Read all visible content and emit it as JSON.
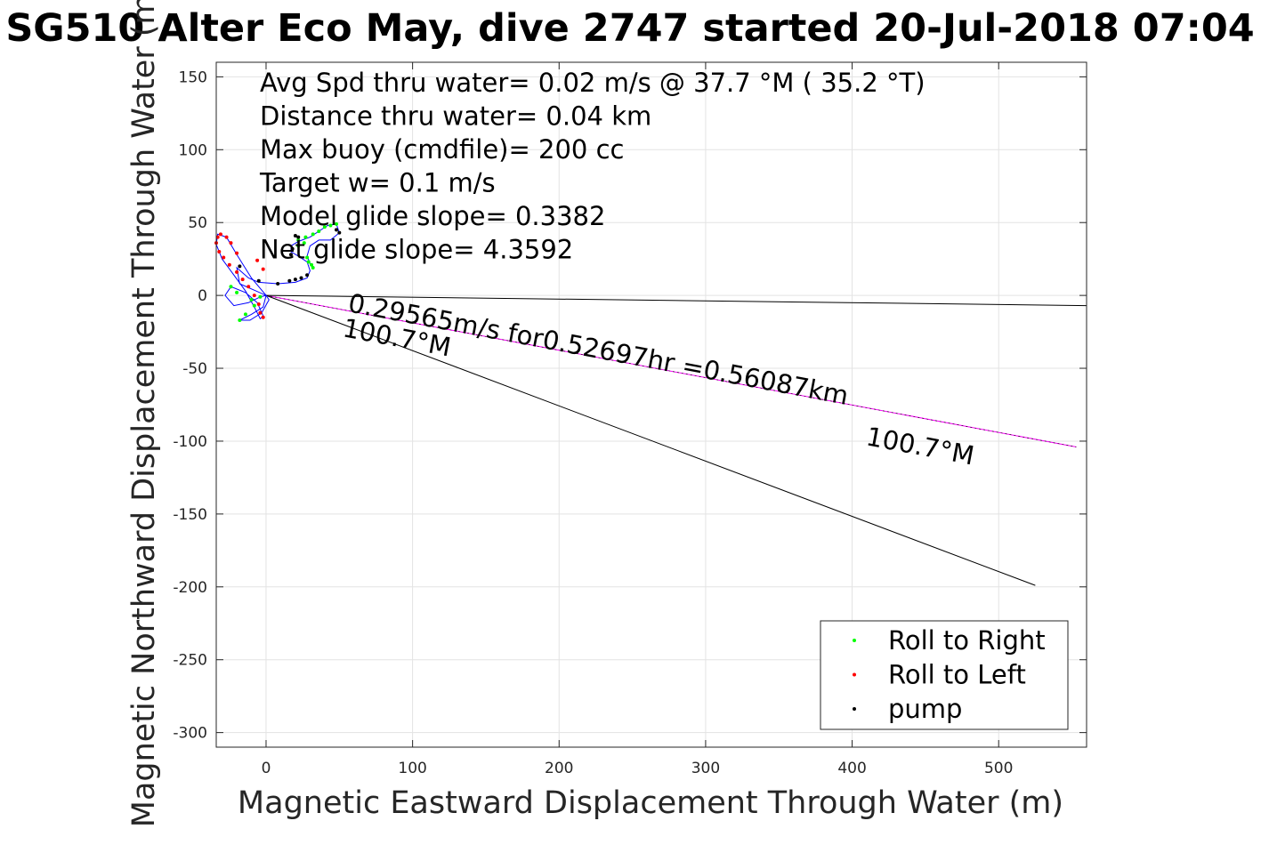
{
  "chart_data": {
    "type": "line",
    "title": "SG510 Alter Eco May, dive 2747 started 20-Jul-2018 07:04",
    "xlabel": "Magnetic Eastward Displacement Through Water (m)",
    "ylabel": "Magnetic Northward Displacement Through Water (m)",
    "xlim": [
      -34,
      560
    ],
    "ylim": [
      -310,
      160
    ],
    "xticks": [
      0,
      100,
      200,
      300,
      400,
      500
    ],
    "xtick_labels": [
      "0",
      "100",
      "200",
      "300",
      "400",
      "500"
    ],
    "yticks": [
      150,
      100,
      50,
      0,
      -50,
      -100,
      -150,
      -200,
      -250,
      -300
    ],
    "ytick_labels": [
      "150",
      "100",
      "50",
      "0",
      "-50",
      "-100",
      "-150",
      "-200",
      "-250",
      "-300"
    ],
    "grid": true,
    "colors": {
      "track": "#0000ff",
      "roll_right": "#00ff00",
      "roll_left": "#ff0000",
      "pump": "#000000",
      "mean_line": "#ff00ff",
      "bound_line": "#000000"
    },
    "info_lines": [
      "Avg Spd thru water=  0.02 m/s @  37.7 °M ( 35.2 °T)",
      "Distance thru water=  0.04 km",
      "Max buoy (cmdfile)= 200 cc",
      "Target w= 0.1 m/s",
      "Model glide slope= 0.3382",
      "Net glide slope= 4.3592"
    ],
    "annotations": {
      "speed_text": "0.29565m/s for0.52697hr =0.56087km",
      "heading_near": "100.7°M",
      "heading_far": "100.7°M"
    },
    "legend": {
      "position": "bottom-right",
      "entries": [
        "Roll to Right",
        "Roll to Left",
        "pump"
      ]
    },
    "lines": [
      {
        "kind": "mean",
        "x": [
          0,
          553
        ],
        "y": [
          0,
          -104
        ]
      },
      {
        "kind": "bound-upper",
        "x": [
          0,
          560
        ],
        "y": [
          0,
          -7
        ]
      },
      {
        "kind": "bound-lower",
        "x": [
          0,
          525
        ],
        "y": [
          0,
          -199
        ]
      }
    ],
    "track": [
      [
        0,
        0
      ],
      [
        -10,
        12
      ],
      [
        -20,
        28
      ],
      [
        -27,
        40
      ],
      [
        -33,
        42
      ],
      [
        -34,
        35
      ],
      [
        -30,
        25
      ],
      [
        -22,
        14
      ],
      [
        -14,
        3
      ],
      [
        -8,
        -8
      ],
      [
        -4,
        -16
      ],
      [
        -2,
        -14
      ],
      [
        -6,
        -5
      ],
      [
        -14,
        2
      ],
      [
        -24,
        6
      ],
      [
        -28,
        0
      ],
      [
        -22,
        -7
      ],
      [
        -12,
        -5
      ],
      [
        -4,
        -1
      ],
      [
        0,
        0
      ],
      [
        -2,
        -8
      ],
      [
        -10,
        -13
      ],
      [
        -18,
        -17
      ],
      [
        -11,
        -17
      ],
      [
        -3,
        -12
      ],
      [
        2,
        -3
      ],
      [
        0,
        0
      ],
      [
        -18,
        8
      ],
      [
        -20,
        19
      ],
      [
        -12,
        12
      ],
      [
        -5,
        9
      ],
      [
        8,
        8
      ],
      [
        20,
        9
      ],
      [
        28,
        12
      ],
      [
        30,
        17
      ],
      [
        28,
        23
      ],
      [
        22,
        27
      ],
      [
        17,
        30
      ],
      [
        17,
        34
      ],
      [
        22,
        37
      ],
      [
        30,
        40
      ],
      [
        36,
        44
      ],
      [
        42,
        48
      ],
      [
        48,
        49
      ],
      [
        50,
        43
      ],
      [
        44,
        38
      ],
      [
        36,
        38
      ],
      [
        30,
        34
      ],
      [
        28,
        27
      ],
      [
        30,
        22
      ],
      [
        32,
        20
      ]
    ],
    "roll_right": [
      [
        -24,
        6
      ],
      [
        -20,
        2
      ],
      [
        -10,
        -3
      ],
      [
        -4,
        -1
      ],
      [
        -18,
        -17
      ],
      [
        -14,
        -13
      ],
      [
        -8,
        -7
      ],
      [
        22,
        38
      ],
      [
        27,
        40
      ],
      [
        32,
        42
      ],
      [
        36,
        44
      ],
      [
        40,
        47
      ],
      [
        44,
        48
      ],
      [
        48,
        49
      ],
      [
        28,
        26
      ],
      [
        29,
        23
      ],
      [
        31,
        21
      ],
      [
        32,
        19
      ],
      [
        22,
        34
      ],
      [
        26,
        36
      ]
    ],
    "roll_left": [
      [
        -27,
        40
      ],
      [
        -31,
        42
      ],
      [
        -33,
        40
      ],
      [
        -34,
        36
      ],
      [
        -32,
        30
      ],
      [
        -29,
        26
      ],
      [
        -25,
        21
      ],
      [
        -20,
        16
      ],
      [
        -16,
        11
      ],
      [
        -12,
        6
      ],
      [
        -8,
        0
      ],
      [
        -5,
        -6
      ],
      [
        -4,
        -12
      ],
      [
        -2,
        -15
      ],
      [
        -24,
        36
      ],
      [
        -20,
        29
      ],
      [
        -6,
        24
      ],
      [
        -2,
        18
      ]
    ],
    "pump": [
      [
        -18,
        20
      ],
      [
        -5,
        10
      ],
      [
        8,
        8
      ],
      [
        16,
        10
      ],
      [
        20,
        11
      ],
      [
        24,
        12
      ],
      [
        28,
        14
      ],
      [
        17,
        28
      ],
      [
        18,
        32
      ],
      [
        22,
        40
      ],
      [
        48,
        45
      ],
      [
        50,
        43
      ],
      [
        20,
        41
      ]
    ]
  }
}
